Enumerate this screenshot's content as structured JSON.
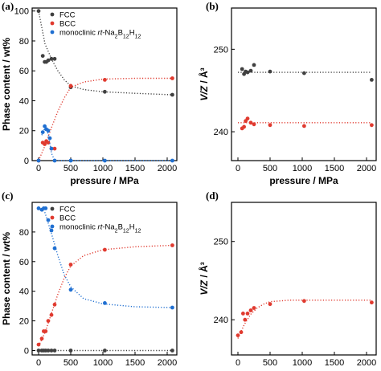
{
  "figure": {
    "panels": [
      "(a)",
      "(b)",
      "(c)",
      "(d)"
    ]
  },
  "colors": {
    "FCC": "#404040",
    "BCC": "#e03a2f",
    "monoclinic": "#1f6fd1"
  },
  "chart_data": [
    {
      "panel": "(a)",
      "type": "scatter",
      "xlabel": "pressure / MPa",
      "ylabel": "Phase content / wt%",
      "xlim": [
        -100,
        2150
      ],
      "ylim": [
        0,
        102
      ],
      "xticks": [
        0,
        500,
        1000,
        1500,
        2000
      ],
      "yticks": [
        0,
        20,
        40,
        60,
        80,
        100
      ],
      "legend_position": "top-right",
      "series": [
        {
          "name": "FCC",
          "color": "#404040",
          "points": [
            [
              0,
              100
            ],
            [
              65,
              70
            ],
            [
              95,
              66
            ],
            [
              120,
              66
            ],
            [
              150,
              67
            ],
            [
              200,
              68
            ],
            [
              250,
              68
            ],
            [
              500,
              49
            ],
            [
              1030,
              46
            ],
            [
              2080,
              44
            ]
          ],
          "fit": [
            [
              0,
              100
            ],
            [
              100,
              78
            ],
            [
              200,
              68
            ],
            [
              300,
              60
            ],
            [
              400,
              54
            ],
            [
              500,
              50
            ],
            [
              700,
              47.5
            ],
            [
              1000,
              46
            ],
            [
              1500,
              45
            ],
            [
              2080,
              44
            ]
          ]
        },
        {
          "name": "BCC",
          "color": "#e03a2f",
          "points": [
            [
              0,
              0
            ],
            [
              65,
              12
            ],
            [
              95,
              11
            ],
            [
              120,
              13
            ],
            [
              150,
              12
            ],
            [
              200,
              8
            ],
            [
              250,
              8
            ],
            [
              500,
              50
            ],
            [
              1030,
              54
            ],
            [
              2080,
              55
            ]
          ],
          "fit": [
            [
              0,
              0
            ],
            [
              100,
              10
            ],
            [
              200,
              22
            ],
            [
              300,
              33
            ],
            [
              400,
              42
            ],
            [
              500,
              49
            ],
            [
              700,
              52.5
            ],
            [
              1000,
              54.5
            ],
            [
              1500,
              55
            ],
            [
              2080,
              55
            ]
          ]
        },
        {
          "name": "monoclinic rt-Na2B12H12",
          "color": "#1f6fd1",
          "points": [
            [
              0,
              0
            ],
            [
              65,
              19
            ],
            [
              95,
              23
            ],
            [
              120,
              21
            ],
            [
              150,
              20
            ],
            [
              175,
              15
            ],
            [
              200,
              8
            ],
            [
              250,
              0
            ],
            [
              500,
              0
            ],
            [
              1030,
              0
            ],
            [
              2080,
              0
            ]
          ],
          "fit": [
            [
              50,
              17
            ],
            [
              100,
              22
            ],
            [
              150,
              18
            ],
            [
              200,
              5
            ],
            [
              250,
              0
            ],
            [
              2080,
              0
            ]
          ]
        }
      ]
    },
    {
      "panel": "(b)",
      "type": "scatter",
      "xlabel": "pressure / MPa",
      "ylabel": "V/Z / Å³",
      "xlim": [
        -100,
        2150
      ],
      "ylim": [
        236.5,
        255
      ],
      "xticks": [
        0,
        500,
        1000,
        1500,
        2000
      ],
      "yticks": [
        240,
        250
      ],
      "series": [
        {
          "name": "",
          "color": "#404040",
          "points": [
            [
              65,
              247.6
            ],
            [
              95,
              247.0
            ],
            [
              120,
              247.3
            ],
            [
              150,
              247.2
            ],
            [
              200,
              247.4
            ],
            [
              250,
              248.1
            ],
            [
              500,
              247.3
            ],
            [
              1030,
              247.1
            ],
            [
              2080,
              246.3
            ]
          ],
          "fit": [
            [
              0,
              247.2
            ],
            [
              2080,
              247.2
            ]
          ]
        },
        {
          "name": "",
          "color": "#e03a2f",
          "points": [
            [
              65,
              240.4
            ],
            [
              95,
              240.6
            ],
            [
              120,
              241.3
            ],
            [
              150,
              241.6
            ],
            [
              200,
              241.1
            ],
            [
              250,
              240.9
            ],
            [
              500,
              240.8
            ],
            [
              1030,
              240.7
            ],
            [
              2080,
              240.8
            ]
          ],
          "fit": [
            [
              0,
              241.1
            ],
            [
              2080,
              241.1
            ]
          ]
        }
      ]
    },
    {
      "panel": "(c)",
      "type": "scatter",
      "xlabel": "pressure / MPa",
      "ylabel": "Phase content / wt%",
      "xlim": [
        -100,
        2150
      ],
      "ylim": [
        -3,
        100
      ],
      "xticks": [
        0,
        500,
        1000,
        1500,
        2000
      ],
      "yticks": [
        0,
        20,
        40,
        60,
        80
      ],
      "legend_position": "top-right",
      "series": [
        {
          "name": "FCC",
          "color": "#404040",
          "points": [
            [
              0,
              0
            ],
            [
              50,
              0
            ],
            [
              80,
              0
            ],
            [
              110,
              0
            ],
            [
              150,
              0
            ],
            [
              200,
              0
            ],
            [
              250,
              0
            ],
            [
              500,
              0
            ],
            [
              1030,
              0
            ],
            [
              2080,
              0
            ]
          ],
          "fit": [
            [
              0,
              0
            ],
            [
              2080,
              0
            ]
          ]
        },
        {
          "name": "BCC",
          "color": "#e03a2f",
          "points": [
            [
              0,
              4
            ],
            [
              50,
              8
            ],
            [
              80,
              13
            ],
            [
              110,
              13
            ],
            [
              150,
              20
            ],
            [
              200,
              24
            ],
            [
              250,
              31
            ],
            [
              500,
              58
            ],
            [
              1030,
              68
            ],
            [
              2080,
              71
            ]
          ],
          "fit": [
            [
              0,
              3
            ],
            [
              100,
              12
            ],
            [
              200,
              25
            ],
            [
              300,
              38
            ],
            [
              400,
              49
            ],
            [
              500,
              57
            ],
            [
              700,
              64
            ],
            [
              1000,
              68
            ],
            [
              1500,
              70
            ],
            [
              2080,
              71
            ]
          ]
        },
        {
          "name": "monoclinic rt-Na2B12H12",
          "color": "#1f6fd1",
          "points": [
            [
              0,
              96
            ],
            [
              50,
              95
            ],
            [
              80,
              96
            ],
            [
              110,
              96
            ],
            [
              150,
              88
            ],
            [
              200,
              81
            ],
            [
              250,
              69
            ],
            [
              500,
              41
            ],
            [
              1030,
              32
            ],
            [
              2080,
              29
            ]
          ],
          "fit": [
            [
              0,
              97
            ],
            [
              100,
              93
            ],
            [
              200,
              79
            ],
            [
              300,
              64
            ],
            [
              400,
              51
            ],
            [
              500,
              43
            ],
            [
              700,
              35
            ],
            [
              1000,
              31.5
            ],
            [
              1500,
              29.5
            ],
            [
              2080,
              29
            ]
          ]
        }
      ]
    },
    {
      "panel": "(d)",
      "type": "scatter",
      "xlabel": "pressure / MPa",
      "ylabel": "V/Z / Å³",
      "xlim": [
        -100,
        2150
      ],
      "ylim": [
        235.5,
        255
      ],
      "xticks": [
        0,
        500,
        1000,
        1500,
        2000
      ],
      "yticks": [
        240,
        250
      ],
      "series": [
        {
          "name": "",
          "color": "#e03a2f",
          "points": [
            [
              0,
              238
            ],
            [
              50,
              238.4
            ],
            [
              80,
              240.8
            ],
            [
              110,
              240
            ],
            [
              150,
              240.8
            ],
            [
              200,
              241.2
            ],
            [
              250,
              241.5
            ],
            [
              500,
              242.0
            ],
            [
              1030,
              242.4
            ],
            [
              2080,
              242.2
            ]
          ],
          "fit": [
            [
              0,
              237.6
            ],
            [
              100,
              239.4
            ],
            [
              200,
              240.7
            ],
            [
              300,
              241.5
            ],
            [
              400,
              242
            ],
            [
              500,
              242.3
            ],
            [
              800,
              242.5
            ],
            [
              1200,
              242.5
            ],
            [
              2080,
              242.5
            ]
          ]
        }
      ]
    }
  ],
  "legend": {
    "FCC": "FCC",
    "BCC": "BCC",
    "mono_prefix": "monoclinic ",
    "mono_italic": "rt",
    "mono_formula_1": "-Na",
    "mono_sub_1": "2",
    "mono_formula_2": "B",
    "mono_sub_2": "12",
    "mono_formula_3": "H",
    "mono_sub_3": "12"
  }
}
